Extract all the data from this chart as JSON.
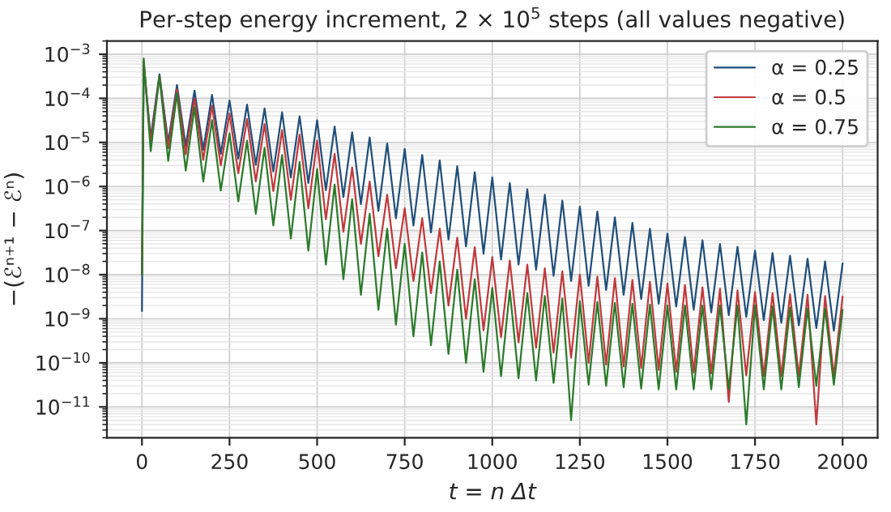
{
  "chart_data": {
    "type": "line",
    "title": "Per-step energy increment, 2 × 10$^{5}$ steps (all values negative)",
    "xlabel": "t = n Δt",
    "ylabel": "−(ℰⁿ⁺¹ − ℰⁿ)",
    "x": [
      0,
      5,
      25,
      50,
      75,
      100,
      125,
      150,
      175,
      200,
      225,
      250,
      275,
      300,
      325,
      350,
      375,
      400,
      425,
      450,
      475,
      500,
      525,
      550,
      575,
      600,
      625,
      650,
      675,
      700,
      725,
      750,
      775,
      800,
      825,
      850,
      875,
      900,
      925,
      950,
      975,
      1000,
      1025,
      1050,
      1075,
      1100,
      1125,
      1150,
      1175,
      1200,
      1225,
      1250,
      1275,
      1300,
      1325,
      1350,
      1375,
      1400,
      1425,
      1450,
      1475,
      1500,
      1525,
      1550,
      1575,
      1600,
      1625,
      1650,
      1675,
      1700,
      1725,
      1750,
      1775,
      1800,
      1825,
      1850,
      1875,
      1900,
      1925,
      1950,
      1975,
      2000
    ],
    "series": [
      {
        "name": "α = 0.25",
        "color": "#1f4e79",
        "values": [
          1.5e-09,
          0.0006,
          1.3e-05,
          0.00035,
          1e-05,
          0.0002,
          8.3e-06,
          0.00015,
          6.8e-06,
          0.00012,
          5.5e-06,
          8.9e-05,
          4.3e-06,
          7.2e-05,
          3.1e-06,
          5.9e-05,
          2.2e-06,
          4.8e-05,
          1.6e-06,
          3.9e-05,
          1.2e-06,
          3.2e-05,
          8.3e-07,
          2.3e-05,
          5.8e-07,
          1.7e-05,
          4e-07,
          1.3e-05,
          2.8e-07,
          9.5e-06,
          1.9e-07,
          7.1e-06,
          1.3e-07,
          5.2e-06,
          9.1e-08,
          3.9e-06,
          6.3e-08,
          2.9e-06,
          4.4e-08,
          2.1e-06,
          3e-08,
          1.6e-06,
          2.2e-08,
          1.2e-06,
          1.7e-08,
          8.7e-07,
          1.3e-08,
          6.5e-07,
          9.5e-09,
          4.8e-07,
          7.2e-09,
          3.5e-07,
          5.6e-09,
          2.7e-07,
          4.5e-09,
          2e-07,
          3.5e-09,
          1.5e-07,
          2.8e-09,
          1.1e-07,
          2.2e-09,
          8.5e-08,
          1.9e-09,
          7.1e-08,
          1.6e-09,
          6e-08,
          1.4e-09,
          5e-08,
          1.2e-09,
          4.3e-08,
          1.1e-09,
          3.5e-08,
          9.3e-10,
          3.1e-08,
          8.1e-10,
          2.7e-08,
          7.1e-10,
          2.3e-08,
          6.2e-10,
          2e-08,
          5.4e-10,
          1.8e-08
        ]
      },
      {
        "name": "α = 0.5",
        "color": "#c0393b",
        "values": [
          1e-08,
          0.0007,
          1e-05,
          0.00032,
          7.4e-06,
          0.00016,
          5.4e-06,
          0.0001,
          4e-06,
          6.8e-05,
          3e-06,
          4.5e-05,
          2e-06,
          3.4e-05,
          1.3e-06,
          2.6e-05,
          7.9e-07,
          1.9e-05,
          5e-07,
          1.5e-05,
          3.2e-07,
          1.1e-05,
          1.8e-07,
          5.5e-06,
          9.5e-08,
          2.7e-06,
          5e-08,
          1.3e-06,
          2.6e-08,
          6.5e-07,
          1.4e-08,
          3.2e-07,
          7.2e-09,
          1.9e-07,
          3.8e-09,
          1.1e-07,
          2e-09,
          6.9e-08,
          1e-09,
          4.2e-08,
          5.5e-10,
          2.5e-08,
          3.8e-10,
          2.1e-08,
          2.9e-10,
          1.7e-08,
          2.2e-10,
          1.4e-08,
          1.7e-10,
          1.2e-08,
          1.3e-10,
          1e-08,
          1e-10,
          9.1e-09,
          9.1e-11,
          8.3e-09,
          8.3e-11,
          7.6e-09,
          7.6e-11,
          6.9e-09,
          6.9e-11,
          6.3e-09,
          6.3e-11,
          5.8e-09,
          6e-11,
          5.2e-09,
          5.8e-11,
          4.8e-09,
          1.3e-11,
          4.4e-09,
          5.2e-11,
          4e-09,
          5e-11,
          3.8e-09,
          5e-11,
          3.6e-09,
          5e-11,
          3.5e-09,
          4e-12,
          3.3e-09,
          5e-11,
          3.2e-09
        ]
      },
      {
        "name": "α = 0.75",
        "color": "#2a7a2a",
        "values": [
          1e-08,
          0.0008,
          6.3e-06,
          0.00032,
          3.8e-06,
          0.00013,
          2.3e-06,
          6.3e-05,
          1.3e-06,
          3.2e-05,
          8.1e-07,
          1.6e-05,
          4.6e-07,
          1.1e-05,
          2.4e-07,
          7.6e-06,
          1.3e-07,
          5.2e-06,
          6.6e-08,
          3.6e-06,
          3.5e-08,
          2.5e-06,
          1.7e-08,
          1.1e-06,
          7.9e-09,
          5.2e-07,
          3.5e-09,
          2.4e-07,
          1.6e-09,
          1.1e-07,
          7.4e-10,
          5e-08,
          4e-10,
          3.2e-08,
          2.5e-10,
          2e-08,
          1.6e-10,
          1.3e-08,
          1e-10,
          7.9e-09,
          6.3e-11,
          5e-09,
          5e-11,
          4.4e-09,
          4.5e-11,
          3.8e-09,
          4e-11,
          3.3e-09,
          3.5e-11,
          2.9e-09,
          5e-12,
          2.5e-09,
          3.2e-11,
          2.4e-09,
          3e-11,
          2.3e-09,
          2.8e-11,
          2.2e-09,
          2.6e-11,
          2.1e-09,
          2.5e-11,
          2e-09,
          2.5e-11,
          2e-09,
          2.5e-11,
          2e-09,
          2.5e-11,
          2e-09,
          2.5e-11,
          2e-09,
          4e-12,
          2e-09,
          2.5e-11,
          1.9e-09,
          2.5e-11,
          1.8e-09,
          2.8e-11,
          1.7e-09,
          3e-11,
          1.7e-09,
          3.2e-11,
          1.6e-09
        ]
      }
    ],
    "log": "y",
    "xlim": [
      -100,
      2100
    ],
    "ylim": [
      2e-12,
      0.002
    ],
    "xticks": [
      0,
      250,
      500,
      750,
      1000,
      1250,
      1500,
      1750,
      2000
    ],
    "yticks": [
      {
        "value": 1e-11,
        "label": "10$^{−11}$"
      },
      {
        "value": 1e-10,
        "label": "10$^{−10}$"
      },
      {
        "value": 1e-09,
        "label": "10$^{−9}$"
      },
      {
        "value": 1e-08,
        "label": "10$^{−8}$"
      },
      {
        "value": 1e-07,
        "label": "10$^{−7}$"
      },
      {
        "value": 1e-06,
        "label": "10$^{−6}$"
      },
      {
        "value": 1e-05,
        "label": "10$^{−5}$"
      },
      {
        "value": 0.0001,
        "label": "10$^{−4}$"
      },
      {
        "value": 0.001,
        "label": "10$^{−3}$"
      }
    ],
    "grid": true,
    "legend": "top right",
    "line_style": "solid",
    "marker": "none"
  }
}
